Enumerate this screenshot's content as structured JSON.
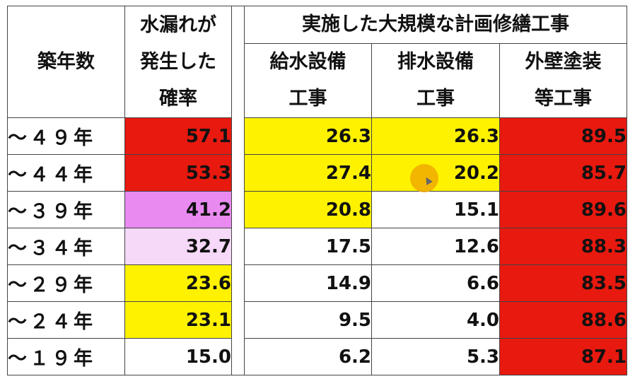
{
  "headers": {
    "age": "築年数",
    "leak_lines": [
      "水漏れが",
      "発生した",
      "確率"
    ],
    "group": "実施した大規模な計画修繕工事",
    "sub": [
      [
        "給水設備",
        "工事"
      ],
      [
        "排水設備",
        "工事"
      ],
      [
        "外壁塗装",
        "等工事"
      ]
    ]
  },
  "rows": [
    {
      "age": "～４９年",
      "leak": "57.1",
      "supply": "26.3",
      "drain": "26.3",
      "wall": "89.5"
    },
    {
      "age": "～４４年",
      "leak": "53.3",
      "supply": "27.4",
      "drain": "20.2",
      "wall": "85.7"
    },
    {
      "age": "～３９年",
      "leak": "41.2",
      "supply": "20.8",
      "drain": "15.1",
      "wall": "89.6"
    },
    {
      "age": "～３４年",
      "leak": "32.7",
      "supply": "17.5",
      "drain": "12.6",
      "wall": "88.3"
    },
    {
      "age": "～２９年",
      "leak": "23.6",
      "supply": "14.9",
      "drain": "6.6",
      "wall": "83.5"
    },
    {
      "age": "～２４年",
      "leak": "23.1",
      "supply": "9.5",
      "drain": "4.0",
      "wall": "88.6"
    },
    {
      "age": "～１９年",
      "leak": "15.0",
      "supply": "6.2",
      "drain": "5.3",
      "wall": "87.1"
    }
  ],
  "colors": {
    "red": "#e8190f",
    "yellow": "#fff200",
    "magenta": "#e88af0",
    "pink": "#f6d8f8",
    "white": "#ffffff"
  },
  "cell_fills": [
    {
      "leak": "red",
      "supply": "yellow",
      "drain": "yellow",
      "wall": "red"
    },
    {
      "leak": "red",
      "supply": "yellow",
      "drain": "yellow",
      "wall": "red"
    },
    {
      "leak": "magenta",
      "supply": "yellow",
      "drain": "white",
      "wall": "red"
    },
    {
      "leak": "pink",
      "supply": "white",
      "drain": "white",
      "wall": "red"
    },
    {
      "leak": "yellow",
      "supply": "white",
      "drain": "white",
      "wall": "red"
    },
    {
      "leak": "yellow",
      "supply": "white",
      "drain": "white",
      "wall": "red"
    },
    {
      "leak": "white",
      "supply": "white",
      "drain": "white",
      "wall": "red"
    }
  ]
}
